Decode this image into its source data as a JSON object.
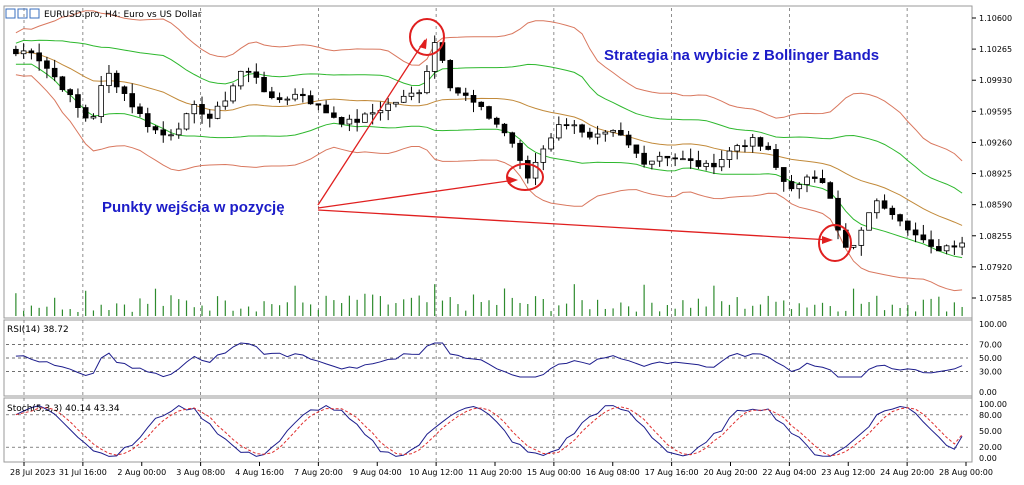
{
  "header": {
    "title": "EURUSD.pro, H4:  Euro vs US Dollar"
  },
  "annotations": {
    "strategy_title": "Strategia na wybicie z Bollinger Bands",
    "entry_points": "Punkty wejścia w pozycję"
  },
  "rsi_panel": {
    "label": "RSI(14) 38.72"
  },
  "stoch_panel": {
    "label": "Stoch(5,3,3) 40.14 43.34"
  },
  "colors": {
    "bull": "#ffffff",
    "bear": "#000000",
    "upper_band": "#d9785f",
    "mid_band": "#c28a3a",
    "green_band": "#2eb82e",
    "volume": "#2e8b2e",
    "indicator_line": "#1c1c8c",
    "signal_line": "#e03030",
    "annotation": "#1c1cc8",
    "arrow": "#e01f1f"
  },
  "chart_data": [
    {
      "type": "candlestick",
      "title": "EURUSD.pro, H4:  Euro vs US Dollar",
      "ylim": [
        1.0745,
        1.1075
      ],
      "y_ticks": [
        "1.10600",
        "1.10265",
        "1.09930",
        "1.09595",
        "1.09260",
        "1.08925",
        "1.08590",
        "1.08255",
        "1.07920",
        "1.07585"
      ],
      "x_ticks": [
        "28 Jul 2023",
        "31 Jul 16:00",
        "2 Aug 00:00",
        "3 Aug 08:00",
        "4 Aug 16:00",
        "7 Aug 20:00",
        "9 Aug 04:00",
        "10 Aug 12:00",
        "11 Aug 20:00",
        "15 Aug 00:00",
        "16 Aug 08:00",
        "17 Aug 16:00",
        "20 Aug 20:00",
        "22 Aug 04:00",
        "23 Aug 12:00",
        "24 Aug 20:00",
        "28 Aug 00:00"
      ],
      "close_anchors": [
        1.1025,
        1.103,
        1.101,
        1.099,
        1.0965,
        1.0945,
        1.1005,
        1.0985,
        1.096,
        1.094,
        1.093,
        1.0945,
        1.0965,
        1.095,
        1.0975,
        1.1005,
        1.1,
        1.097,
        1.0975,
        1.098,
        1.0965,
        1.0955,
        1.0945,
        1.095,
        1.096,
        1.0968,
        1.0975,
        1.0985,
        1.1045,
        1.0985,
        1.0975,
        1.096,
        1.0945,
        1.0925,
        1.088,
        1.0915,
        1.094,
        1.095,
        1.0925,
        1.093,
        1.0935,
        1.0915,
        1.09,
        1.091,
        1.0905,
        1.09,
        1.0895,
        1.0905,
        1.092,
        1.0925,
        1.0915,
        1.088,
        1.087,
        1.0885,
        1.088,
        1.08,
        1.0805,
        1.0855,
        1.085,
        1.0835,
        1.0815,
        1.08,
        1.0805,
        1.081
      ],
      "series": [
        {
          "name": "",
          "kind": "bollinger_upper"
        },
        {
          "name": "",
          "kind": "bollinger_middle"
        },
        {
          "name": "",
          "kind": "bollinger_lower"
        }
      ]
    },
    {
      "type": "line",
      "name": "RSI(14)",
      "value": 38.72,
      "ylim": [
        0,
        100
      ],
      "y_ticks": [
        "100.00",
        "70.00",
        "50.00",
        "30.00",
        "0.00"
      ],
      "levels": [
        70,
        50,
        30
      ]
    },
    {
      "type": "line",
      "name": "Stoch(5,3,3)",
      "main": 40.14,
      "signal": 43.34,
      "ylim": [
        0,
        100
      ],
      "y_ticks": [
        "100.00",
        "80.00",
        "50.00",
        "20.00",
        "0.00"
      ],
      "levels": [
        80,
        20
      ]
    }
  ]
}
